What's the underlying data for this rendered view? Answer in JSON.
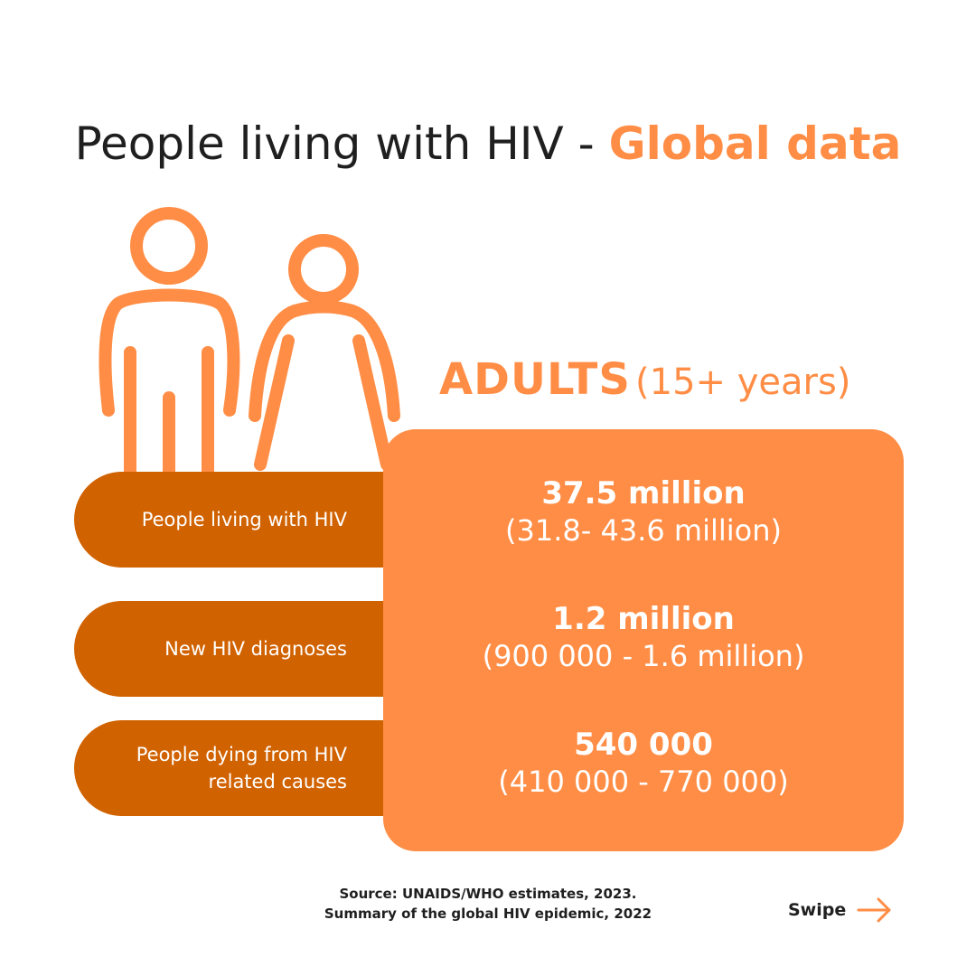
{
  "title": {
    "prefix": "People living with HIV - ",
    "highlight": "Global data"
  },
  "group": {
    "label": "ADULTS",
    "qualifier": "(15+ years)"
  },
  "rows": [
    {
      "label_lines": [
        "People living with HIV"
      ],
      "value": "37.5 million",
      "range": "(31.8- 43.6 million)"
    },
    {
      "label_lines": [
        "New HIV diagnoses"
      ],
      "value": "1.2 million",
      "range": "(900 000 - 1.6 million)"
    },
    {
      "label_lines": [
        "People dying from HIV",
        "related causes"
      ],
      "value": "540 000",
      "range": "(410 000 - 770 000)"
    }
  ],
  "source": {
    "line1": "Source: UNAIDS/WHO estimates, 2023.",
    "line2": "Summary of the global HIV epidemic, 2022"
  },
  "swipe": {
    "label": "Swipe"
  },
  "colors": {
    "accent": "#ff8d45",
    "dark_orange": "#d16200",
    "text": "#1f1f1f",
    "background": "#ffffff"
  },
  "icons": [
    "man-figure-icon",
    "woman-figure-icon",
    "arrow-right-icon"
  ]
}
